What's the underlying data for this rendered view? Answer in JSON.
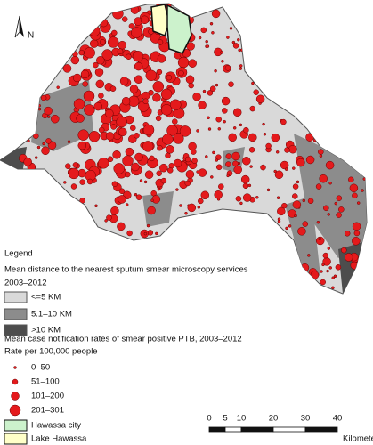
{
  "north": "N",
  "legend": {
    "title": "Legend",
    "distance_title": "Mean distance to the nearest sputum smear microscopy services",
    "distance_period": "2003–2012",
    "distance_classes": [
      "<=5 KM",
      "5.1–10 KM",
      ">10 KM"
    ],
    "rate_title": "Mean case notification rates of smear positive PTB, 2003–2012",
    "rate_unit": "Rate per 100,000 people",
    "rate_classes": [
      "0–50",
      "51–100",
      "101–200",
      "201–301"
    ],
    "areas": [
      "Hawassa city",
      "Lake Hawassa"
    ]
  },
  "scale": {
    "ticks": [
      "0",
      "5",
      "10",
      "20",
      "30",
      "40"
    ],
    "unit": "Kilometers"
  }
}
